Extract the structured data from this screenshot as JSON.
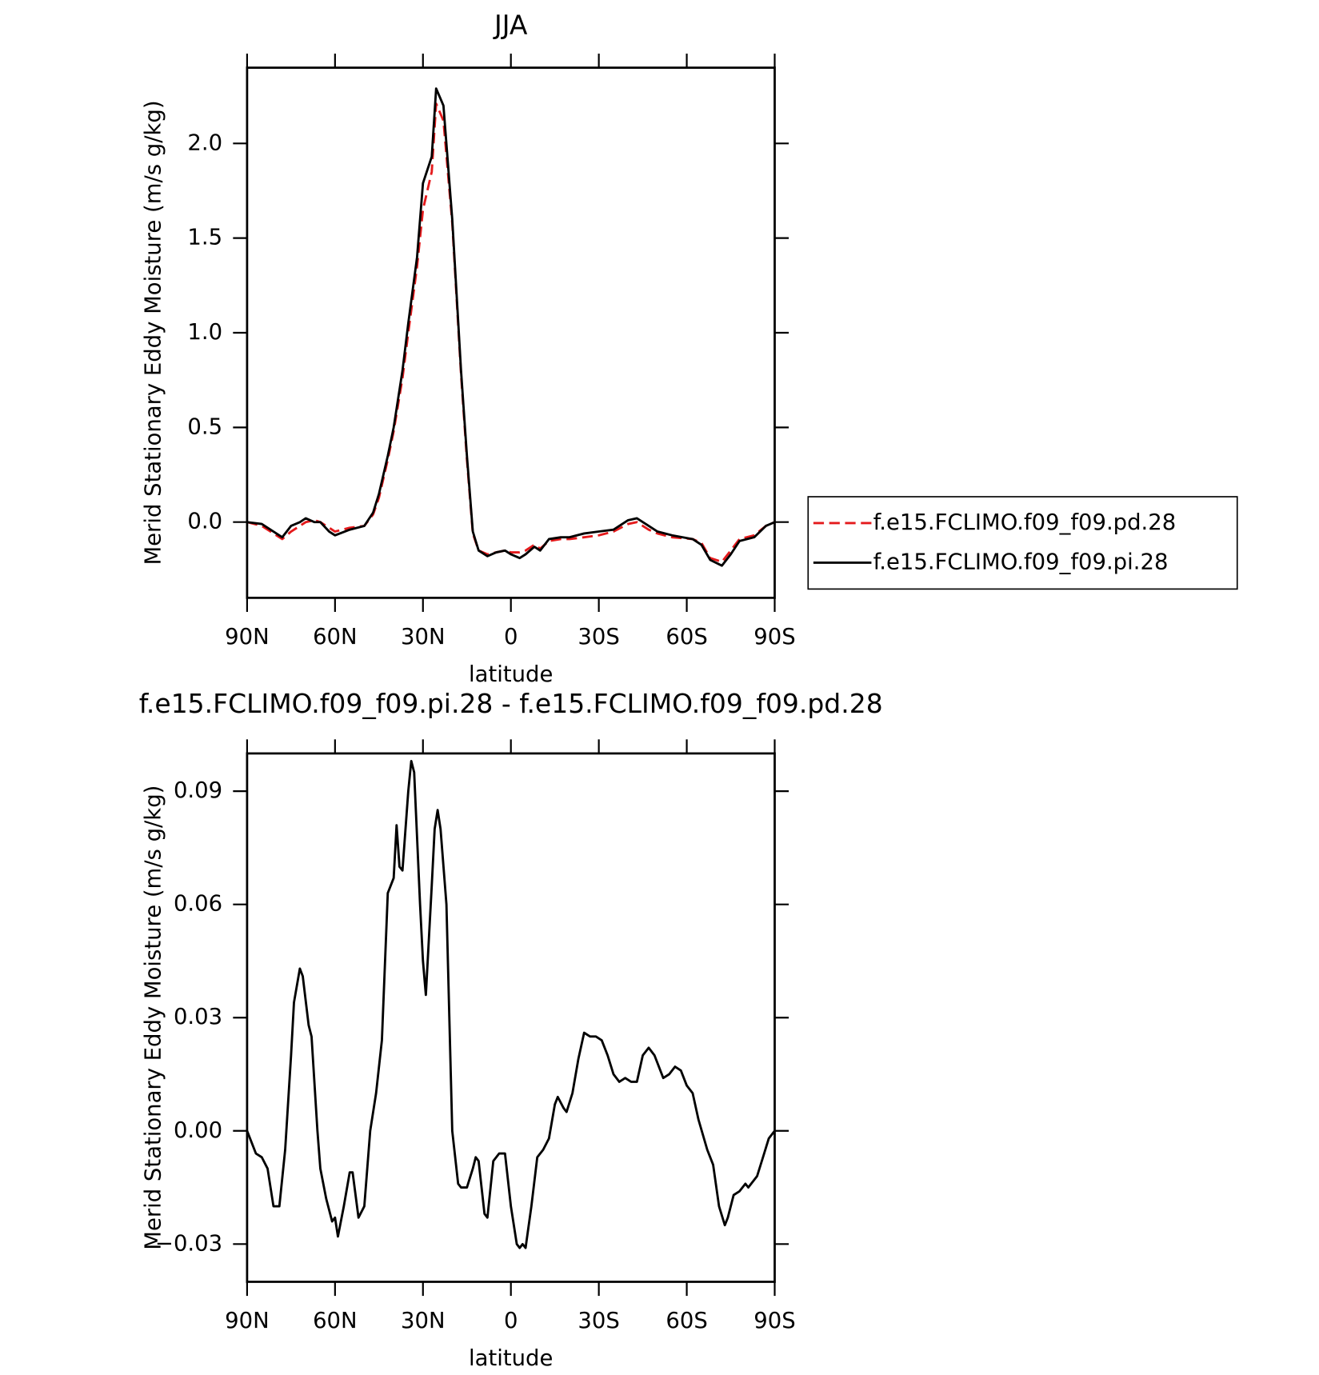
{
  "chart_data": [
    {
      "type": "line",
      "title": "JJA",
      "x_label": "latitude",
      "y_label": "Merid Stationary Eddy Moisture (m/s g/kg)",
      "x": [
        90,
        85,
        78,
        75,
        72,
        70,
        67,
        65,
        62,
        60,
        55,
        50,
        47,
        45,
        42,
        40,
        37,
        35,
        32,
        30,
        27,
        25.5,
        23,
        20,
        17,
        15,
        13,
        11,
        8,
        5,
        2,
        0,
        -3,
        -5,
        -8,
        -10,
        -13,
        -17,
        -20,
        -25,
        -30,
        -35,
        -40,
        -43,
        -47,
        -50,
        -55,
        -62,
        -65,
        -68,
        -72,
        -75,
        -78,
        -83,
        -87,
        -90
      ],
      "series": [
        {
          "name": "f.e15.FCLIMO.f09_f09.pd.28",
          "color": "#e41a1c",
          "dash": true,
          "values": [
            0,
            -0.02,
            -0.09,
            -0.05,
            -0.02,
            0,
            0.01,
            0,
            -0.03,
            -0.05,
            -0.03,
            -0.02,
            0.04,
            0.13,
            0.33,
            0.48,
            0.76,
            1.0,
            1.35,
            1.65,
            1.85,
            2.21,
            2.12,
            1.58,
            0.78,
            0.33,
            -0.06,
            -0.15,
            -0.17,
            -0.16,
            -0.15,
            -0.16,
            -0.16,
            -0.15,
            -0.12,
            -0.14,
            -0.1,
            -0.09,
            -0.09,
            -0.08,
            -0.07,
            -0.05,
            -0.01,
            0.0,
            -0.04,
            -0.06,
            -0.08,
            -0.09,
            -0.11,
            -0.19,
            -0.21,
            -0.15,
            -0.09,
            -0.07,
            -0.02,
            0
          ]
        },
        {
          "name": "f.e15.FCLIMO.f09_f09.pi.28",
          "color": "#000000",
          "dash": false,
          "values": [
            0,
            -0.01,
            -0.08,
            -0.02,
            0,
            0.02,
            0,
            0,
            -0.05,
            -0.07,
            -0.04,
            -0.02,
            0.05,
            0.15,
            0.35,
            0.5,
            0.8,
            1.05,
            1.4,
            1.79,
            1.93,
            2.29,
            2.2,
            1.6,
            0.8,
            0.35,
            -0.05,
            -0.15,
            -0.18,
            -0.16,
            -0.15,
            -0.17,
            -0.19,
            -0.17,
            -0.13,
            -0.15,
            -0.09,
            -0.08,
            -0.08,
            -0.06,
            -0.05,
            -0.04,
            0.01,
            0.02,
            -0.02,
            -0.05,
            -0.07,
            -0.09,
            -0.12,
            -0.2,
            -0.23,
            -0.17,
            -0.1,
            -0.08,
            -0.02,
            0
          ]
        }
      ],
      "xlim": [
        90,
        -90
      ],
      "xticks": [
        {
          "value": 90,
          "label": "90N"
        },
        {
          "value": 60,
          "label": "60N"
        },
        {
          "value": 30,
          "label": "30N"
        },
        0,
        {
          "value": -30,
          "label": "30S"
        },
        {
          "value": -60,
          "label": "60S"
        },
        {
          "value": -90,
          "label": "90S"
        }
      ],
      "ylim": [
        -0.4,
        2.4
      ],
      "yticks": [
        {
          "value": 0,
          "label": "0.0"
        },
        0.5,
        {
          "value": 1,
          "label": "1.0"
        },
        1.5,
        {
          "value": 2,
          "label": "2.0"
        }
      ],
      "legend": "right"
    },
    {
      "type": "line",
      "title": "f.e15.FCLIMO.f09_f09.pi.28 - f.e15.FCLIMO.f09_f09.pd.28",
      "x_label": "latitude",
      "y_label": "Merid Stationary Eddy Moisture (m/s g/kg)",
      "x": [
        90,
        87,
        85,
        83,
        81,
        79,
        77,
        75,
        74,
        72,
        71,
        69,
        68,
        66,
        65,
        63,
        61,
        60,
        59,
        57,
        55,
        54,
        52,
        50,
        48,
        46,
        44,
        42,
        40,
        39,
        38,
        37,
        35,
        34,
        33,
        31,
        30,
        29,
        27,
        26,
        25,
        24,
        22,
        20,
        18,
        17,
        15,
        13,
        12,
        11,
        9,
        8,
        6,
        4,
        2,
        0,
        -2,
        -3,
        -4,
        -5,
        -7,
        -9,
        -11,
        -13,
        -15,
        -16,
        -18,
        -19,
        -21,
        -23,
        -25,
        -27,
        -29,
        -31,
        -33,
        -35,
        -37,
        -39,
        -41,
        -43,
        -45,
        -47,
        -49,
        -52,
        -54,
        -56,
        -58,
        -60,
        -62,
        -64,
        -67,
        -69,
        -71,
        -73,
        -74,
        -76,
        -78,
        -80,
        -81,
        -84,
        -86,
        -88,
        -90
      ],
      "series": [
        {
          "color": "#000000",
          "values": [
            0,
            -0.006,
            -0.007,
            -0.01,
            -0.02,
            -0.02,
            -0.005,
            0.02,
            0.034,
            0.043,
            0.041,
            0.028,
            0.025,
            0,
            -0.01,
            -0.018,
            -0.024,
            -0.023,
            -0.028,
            -0.02,
            -0.011,
            -0.011,
            -0.023,
            -0.02,
            0,
            0.01,
            0.024,
            0.063,
            0.067,
            0.081,
            0.07,
            0.069,
            0.09,
            0.098,
            0.095,
            0.06,
            0.045,
            0.036,
            0.065,
            0.08,
            0.085,
            0.08,
            0.06,
            0,
            -0.014,
            -0.015,
            -0.015,
            -0.01,
            -0.007,
            -0.008,
            -0.022,
            -0.023,
            -0.008,
            -0.006,
            -0.006,
            -0.02,
            -0.03,
            -0.031,
            -0.03,
            -0.031,
            -0.02,
            -0.007,
            -0.005,
            -0.002,
            0.007,
            0.009,
            0.006,
            0.005,
            0.01,
            0.019,
            0.026,
            0.025,
            0.025,
            0.024,
            0.02,
            0.015,
            0.013,
            0.014,
            0.013,
            0.013,
            0.02,
            0.022,
            0.02,
            0.014,
            0.015,
            0.017,
            0.016,
            0.012,
            0.01,
            0.003,
            -0.005,
            -0.009,
            -0.02,
            -0.025,
            -0.023,
            -0.017,
            -0.016,
            -0.014,
            -0.015,
            -0.012,
            -0.007,
            -0.002,
            0
          ]
        }
      ],
      "xlim": [
        90,
        -90
      ],
      "xticks": [
        {
          "value": 90,
          "label": "90N"
        },
        {
          "value": 60,
          "label": "60N"
        },
        {
          "value": 30,
          "label": "30N"
        },
        0,
        {
          "value": -30,
          "label": "30S"
        },
        {
          "value": -60,
          "label": "60S"
        },
        {
          "value": -90,
          "label": "90S"
        }
      ],
      "ylim": [
        -0.04,
        0.1
      ],
      "yticks": [
        {
          "value": -0.03,
          "label": "−0.03"
        },
        {
          "value": 0,
          "label": "0.00"
        },
        0.03,
        0.06,
        0.09
      ]
    }
  ]
}
